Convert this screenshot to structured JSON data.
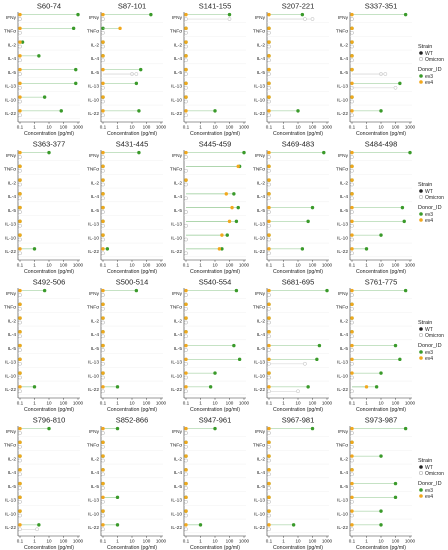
{
  "cytokines": [
    "IFNγ",
    "TNFα",
    "IL-2",
    "IL-4",
    "IL-5",
    "IL-13",
    "IL-10",
    "IL-22"
  ],
  "x_ticks": [
    "0.1",
    "1",
    "10",
    "100",
    "1000"
  ],
  "xlabel": "Concentration (pg/ml)",
  "colors": {
    "ev3": "#3a9a2a",
    "ev4": "#f2a81d",
    "wt_line": "#8bc48a",
    "om_line": "#d8d8d8"
  },
  "legend": {
    "strain_title": "Strain",
    "strain_items": [
      "WT",
      "Omicron"
    ],
    "donor_title": "Donor_ID",
    "donor_items": [
      "ev3",
      "ev4"
    ]
  },
  "chart_data": {
    "type": "scatter",
    "x_scale": "log",
    "xlim": [
      0.1,
      1000
    ],
    "xlabel": "Concentration (pg/ml)",
    "point_format": "each cytokine: [ev3_WT, ev4_WT, ev3_Omicron, ev4_Omicron] in pg/ml",
    "panels": [
      {
        "title": "S60-74",
        "values": {
          "IFNγ": [
            1000,
            0.1,
            0.1,
            0.1
          ],
          "TNFα": [
            500,
            0.1,
            0.1,
            0.1
          ],
          "IL-2": [
            0.15,
            0.1,
            0.1,
            0.1
          ],
          "IL-4": [
            2,
            0.1,
            0.1,
            0.1
          ],
          "IL-5": [
            700,
            0.1,
            0.1,
            0.1
          ],
          "IL-13": [
            700,
            0.1,
            0.1,
            0.1
          ],
          "IL-10": [
            5,
            0.1,
            0.1,
            0.1
          ],
          "IL-22": [
            70,
            0.1,
            0.1,
            0.1
          ]
        }
      },
      {
        "title": "S87-101",
        "values": {
          "IFNγ": [
            200,
            0.1,
            0.1,
            0.1
          ],
          "TNFα": [
            0.1,
            1.5,
            0.1,
            0.1
          ],
          "IL-2": [
            0.1,
            0.1,
            0.1,
            0.1
          ],
          "IL-4": [
            0.1,
            0.1,
            0.1,
            0.1
          ],
          "IL-5": [
            40,
            0.1,
            10,
            20
          ],
          "IL-13": [
            20,
            0.1,
            0.1,
            0.1
          ],
          "IL-10": [
            0.1,
            0.1,
            0.1,
            0.1
          ],
          "IL-22": [
            30,
            0.1,
            0.1,
            0.1
          ]
        }
      },
      {
        "title": "S141-155",
        "values": {
          "IFNγ": [
            100,
            0.1,
            100,
            0.1
          ],
          "TNFα": [
            0.1,
            0.1,
            0.1,
            0.1
          ],
          "IL-2": [
            0.1,
            0.1,
            0.1,
            0.1
          ],
          "IL-4": [
            0.1,
            0.1,
            0.1,
            0.1
          ],
          "IL-5": [
            0.1,
            0.1,
            0.1,
            0.1
          ],
          "IL-13": [
            0.1,
            0.1,
            0.1,
            0.1
          ],
          "IL-10": [
            0.1,
            0.1,
            0.1,
            0.1
          ],
          "IL-22": [
            10,
            0.1,
            0.1,
            0.1
          ]
        }
      },
      {
        "title": "S207-221",
        "values": {
          "IFNγ": [
            20,
            0.1,
            100,
            30
          ],
          "TNFα": [
            0.1,
            0.1,
            0.1,
            0.1
          ],
          "IL-2": [
            0.1,
            0.1,
            0.1,
            0.1
          ],
          "IL-4": [
            0.1,
            0.1,
            0.1,
            0.1
          ],
          "IL-5": [
            0.1,
            0.1,
            0.1,
            0.1
          ],
          "IL-13": [
            0.1,
            0.1,
            0.1,
            0.1
          ],
          "IL-10": [
            0.1,
            0.1,
            0.1,
            0.1
          ],
          "IL-22": [
            10,
            0.1,
            0.1,
            0.1
          ]
        }
      },
      {
        "title": "S337-351",
        "values": {
          "IFNγ": [
            500,
            0.1,
            0.1,
            0.1
          ],
          "TNFα": [
            0.1,
            0.1,
            0.1,
            0.1
          ],
          "IL-2": [
            0.1,
            0.1,
            0.1,
            0.1
          ],
          "IL-4": [
            0.1,
            0.1,
            0.1,
            0.1
          ],
          "IL-5": [
            0.1,
            0.1,
            10,
            20
          ],
          "IL-13": [
            200,
            0.1,
            0.1,
            100
          ],
          "IL-10": [
            0.1,
            0.1,
            0.1,
            0.1
          ],
          "IL-22": [
            10,
            0.1,
            0.1,
            0.1
          ]
        }
      },
      {
        "title": "S363-377",
        "values": {
          "IFNγ": [
            10,
            0.1,
            0.1,
            0.1
          ],
          "TNFα": [
            0.1,
            0.1,
            0.1,
            0.1
          ],
          "IL-2": [
            0.1,
            0.1,
            0.1,
            0.1
          ],
          "IL-4": [
            0.1,
            0.1,
            0.1,
            0.1
          ],
          "IL-5": [
            0.1,
            0.1,
            0.1,
            0.1
          ],
          "IL-13": [
            0.1,
            0.1,
            0.1,
            0.1
          ],
          "IL-10": [
            0.1,
            0.1,
            0.1,
            0.1
          ],
          "IL-22": [
            1,
            0.1,
            0.1,
            0.1
          ]
        }
      },
      {
        "title": "S431-445",
        "values": {
          "IFNγ": [
            30,
            0.1,
            0.1,
            0.1
          ],
          "TNFα": [
            0.1,
            0.1,
            0.1,
            0.1
          ],
          "IL-2": [
            0.1,
            0.1,
            0.1,
            0.1
          ],
          "IL-4": [
            0.1,
            0.1,
            0.1,
            0.1
          ],
          "IL-5": [
            0.1,
            0.1,
            0.1,
            0.1
          ],
          "IL-13": [
            0.1,
            0.1,
            0.1,
            0.1
          ],
          "IL-10": [
            0.1,
            0.1,
            0.1,
            0.1
          ],
          "IL-22": [
            0.2,
            0.1,
            0.1,
            0.1
          ]
        }
      },
      {
        "title": "S445-459",
        "values": {
          "IFNγ": [
            1000,
            0.1,
            0.1,
            0.1
          ],
          "TNFα": [
            500,
            400,
            0.1,
            0.1
          ],
          "IL-2": [
            0.1,
            0.1,
            0.1,
            0.1
          ],
          "IL-4": [
            200,
            60,
            0.1,
            0.1
          ],
          "IL-5": [
            400,
            150,
            0.1,
            0.1
          ],
          "IL-13": [
            300,
            100,
            0.1,
            0.1
          ],
          "IL-10": [
            70,
            30,
            0.1,
            0.1
          ],
          "IL-22": [
            30,
            20,
            0.1,
            0.1
          ]
        }
      },
      {
        "title": "S469-483",
        "values": {
          "IFNγ": [
            600,
            0.1,
            0.1,
            0.1
          ],
          "TNFα": [
            0.1,
            0.1,
            0.1,
            0.1
          ],
          "IL-2": [
            0.1,
            0.1,
            0.1,
            0.1
          ],
          "IL-4": [
            0.1,
            0.1,
            0.1,
            0.1
          ],
          "IL-5": [
            100,
            0.1,
            0.1,
            0.1
          ],
          "IL-13": [
            50,
            0.1,
            0.1,
            0.1
          ],
          "IL-10": [
            0.1,
            0.1,
            0.1,
            0.1
          ],
          "IL-22": [
            20,
            0.1,
            0.1,
            0.1
          ]
        }
      },
      {
        "title": "S484-498",
        "values": {
          "IFNγ": [
            1000,
            0.1,
            0.1,
            0.1
          ],
          "TNFα": [
            0.1,
            0.1,
            0.1,
            0.1
          ],
          "IL-2": [
            0.1,
            0.1,
            0.1,
            0.1
          ],
          "IL-4": [
            0.1,
            0.1,
            0.1,
            0.1
          ],
          "IL-5": [
            300,
            0.1,
            0.1,
            0.1
          ],
          "IL-13": [
            400,
            0.1,
            0.1,
            0.1
          ],
          "IL-10": [
            10,
            0.1,
            0.1,
            0.1
          ],
          "IL-22": [
            1,
            0.1,
            0.1,
            0.1
          ]
        }
      },
      {
        "title": "S492-506",
        "values": {
          "IFNγ": [
            5,
            0.1,
            0.1,
            0.1
          ],
          "TNFα": [
            0.1,
            0.1,
            0.1,
            0.1
          ],
          "IL-2": [
            0.1,
            0.1,
            0.1,
            0.1
          ],
          "IL-4": [
            0.1,
            0.1,
            0.1,
            0.1
          ],
          "IL-5": [
            0.1,
            0.1,
            0.1,
            0.1
          ],
          "IL-13": [
            0.1,
            0.1,
            0.1,
            0.1
          ],
          "IL-10": [
            0.1,
            0.1,
            0.1,
            0.1
          ],
          "IL-22": [
            1,
            0.1,
            0.1,
            0.1
          ]
        }
      },
      {
        "title": "S500-514",
        "values": {
          "IFNγ": [
            20,
            0.1,
            0.1,
            0.1
          ],
          "TNFα": [
            0.1,
            0.1,
            0.1,
            0.1
          ],
          "IL-2": [
            0.1,
            0.1,
            0.1,
            0.1
          ],
          "IL-4": [
            0.1,
            0.1,
            0.1,
            0.1
          ],
          "IL-5": [
            0.1,
            0.1,
            0.1,
            0.1
          ],
          "IL-13": [
            0.1,
            0.1,
            0.1,
            0.1
          ],
          "IL-10": [
            0.1,
            0.1,
            0.1,
            0.1
          ],
          "IL-22": [
            1,
            0.1,
            0.1,
            0.1
          ]
        }
      },
      {
        "title": "S540-554",
        "values": {
          "IFNγ": [
            300,
            0.1,
            0.1,
            0.1
          ],
          "TNFα": [
            0.1,
            0.1,
            0.1,
            0.1
          ],
          "IL-2": [
            0.1,
            0.1,
            0.1,
            0.1
          ],
          "IL-4": [
            0.1,
            0.1,
            0.1,
            0.1
          ],
          "IL-5": [
            200,
            0.1,
            0.1,
            0.1
          ],
          "IL-13": [
            500,
            0.1,
            0.1,
            0.1
          ],
          "IL-10": [
            10,
            0.1,
            0.1,
            0.1
          ],
          "IL-22": [
            5,
            0.1,
            0.1,
            0.1
          ]
        }
      },
      {
        "title": "S681-695",
        "values": {
          "IFNγ": [
            1000,
            0.1,
            0.1,
            0.1
          ],
          "TNFα": [
            0.1,
            0.1,
            0.1,
            0.1
          ],
          "IL-2": [
            0.1,
            0.1,
            0.1,
            0.1
          ],
          "IL-4": [
            0.1,
            0.1,
            0.1,
            0.1
          ],
          "IL-5": [
            300,
            0.1,
            0.1,
            0.1
          ],
          "IL-13": [
            200,
            0.1,
            30,
            0.1
          ],
          "IL-10": [
            0.1,
            0.1,
            0.1,
            0.1
          ],
          "IL-22": [
            50,
            0.1,
            10,
            0.1
          ]
        }
      },
      {
        "title": "S761-775",
        "values": {
          "IFNγ": [
            500,
            0.1,
            0.1,
            0.1
          ],
          "TNFα": [
            0.1,
            0.1,
            0.1,
            0.1
          ],
          "IL-2": [
            0.1,
            0.1,
            0.1,
            0.1
          ],
          "IL-4": [
            0.1,
            0.1,
            0.1,
            0.1
          ],
          "IL-5": [
            100,
            0.1,
            0.1,
            0.1
          ],
          "IL-13": [
            200,
            0.1,
            0.1,
            0.1
          ],
          "IL-10": [
            10,
            0.1,
            0.1,
            0.1
          ],
          "IL-22": [
            5,
            1,
            0.1,
            0.1
          ]
        }
      },
      {
        "title": "S796-810",
        "values": {
          "IFNγ": [
            10,
            0.1,
            0.1,
            0.1
          ],
          "TNFα": [
            0.1,
            0.1,
            0.1,
            0.1
          ],
          "IL-2": [
            0.1,
            0.1,
            0.1,
            0.1
          ],
          "IL-4": [
            0.1,
            0.1,
            0.1,
            0.1
          ],
          "IL-5": [
            0.1,
            0.1,
            0.1,
            0.1
          ],
          "IL-13": [
            0.1,
            0.1,
            0.1,
            0.1
          ],
          "IL-10": [
            0.1,
            0.1,
            0.1,
            0.1
          ],
          "IL-22": [
            2,
            0.1,
            1.5,
            0.1
          ]
        }
      },
      {
        "title": "S852-866",
        "values": {
          "IFNγ": [
            1,
            0.1,
            0.1,
            0.1
          ],
          "TNFα": [
            0.1,
            0.1,
            0.1,
            0.1
          ],
          "IL-2": [
            0.1,
            0.1,
            0.1,
            0.1
          ],
          "IL-4": [
            0.1,
            0.1,
            0.1,
            0.1
          ],
          "IL-5": [
            0.1,
            0.1,
            0.1,
            0.1
          ],
          "IL-13": [
            1,
            0.1,
            0.1,
            0.1
          ],
          "IL-10": [
            0.1,
            0.1,
            0.1,
            0.1
          ],
          "IL-22": [
            1,
            0.1,
            0.1,
            0.1
          ]
        }
      },
      {
        "title": "S947-961",
        "values": {
          "IFNγ": [
            10,
            0.1,
            0.1,
            0.1
          ],
          "TNFα": [
            0.1,
            0.1,
            0.1,
            0.1
          ],
          "IL-2": [
            0.1,
            0.1,
            0.1,
            0.1
          ],
          "IL-4": [
            0.1,
            0.1,
            0.1,
            0.1
          ],
          "IL-5": [
            0.1,
            0.1,
            0.1,
            0.1
          ],
          "IL-13": [
            0.1,
            0.1,
            0.1,
            0.1
          ],
          "IL-10": [
            0.1,
            0.1,
            0.1,
            0.1
          ],
          "IL-22": [
            1,
            0.1,
            0.1,
            0.1
          ]
        }
      },
      {
        "title": "S967-981",
        "values": {
          "IFNγ": [
            100,
            0.1,
            0.1,
            0.1
          ],
          "TNFα": [
            0.1,
            0.1,
            0.1,
            0.1
          ],
          "IL-2": [
            0.1,
            0.1,
            0.1,
            0.1
          ],
          "IL-4": [
            0.1,
            0.1,
            0.1,
            0.1
          ],
          "IL-5": [
            0.1,
            0.1,
            0.1,
            0.1
          ],
          "IL-13": [
            0.1,
            0.1,
            0.1,
            0.1
          ],
          "IL-10": [
            0.1,
            0.1,
            0.1,
            0.1
          ],
          "IL-22": [
            5,
            0.1,
            0.1,
            0.1
          ]
        }
      },
      {
        "title": "S973-987",
        "values": {
          "IFNγ": [
            500,
            0.1,
            0.1,
            0.1
          ],
          "TNFα": [
            0.1,
            0.1,
            0.1,
            0.1
          ],
          "IL-2": [
            10,
            0.1,
            0.1,
            0.1
          ],
          "IL-4": [
            0.1,
            0.1,
            0.1,
            0.1
          ],
          "IL-5": [
            100,
            0.1,
            0.1,
            0.1
          ],
          "IL-13": [
            100,
            0.1,
            0.1,
            0.1
          ],
          "IL-10": [
            10,
            0.1,
            0.1,
            0.1
          ],
          "IL-22": [
            10,
            0.1,
            0.1,
            0.1
          ]
        }
      }
    ]
  }
}
